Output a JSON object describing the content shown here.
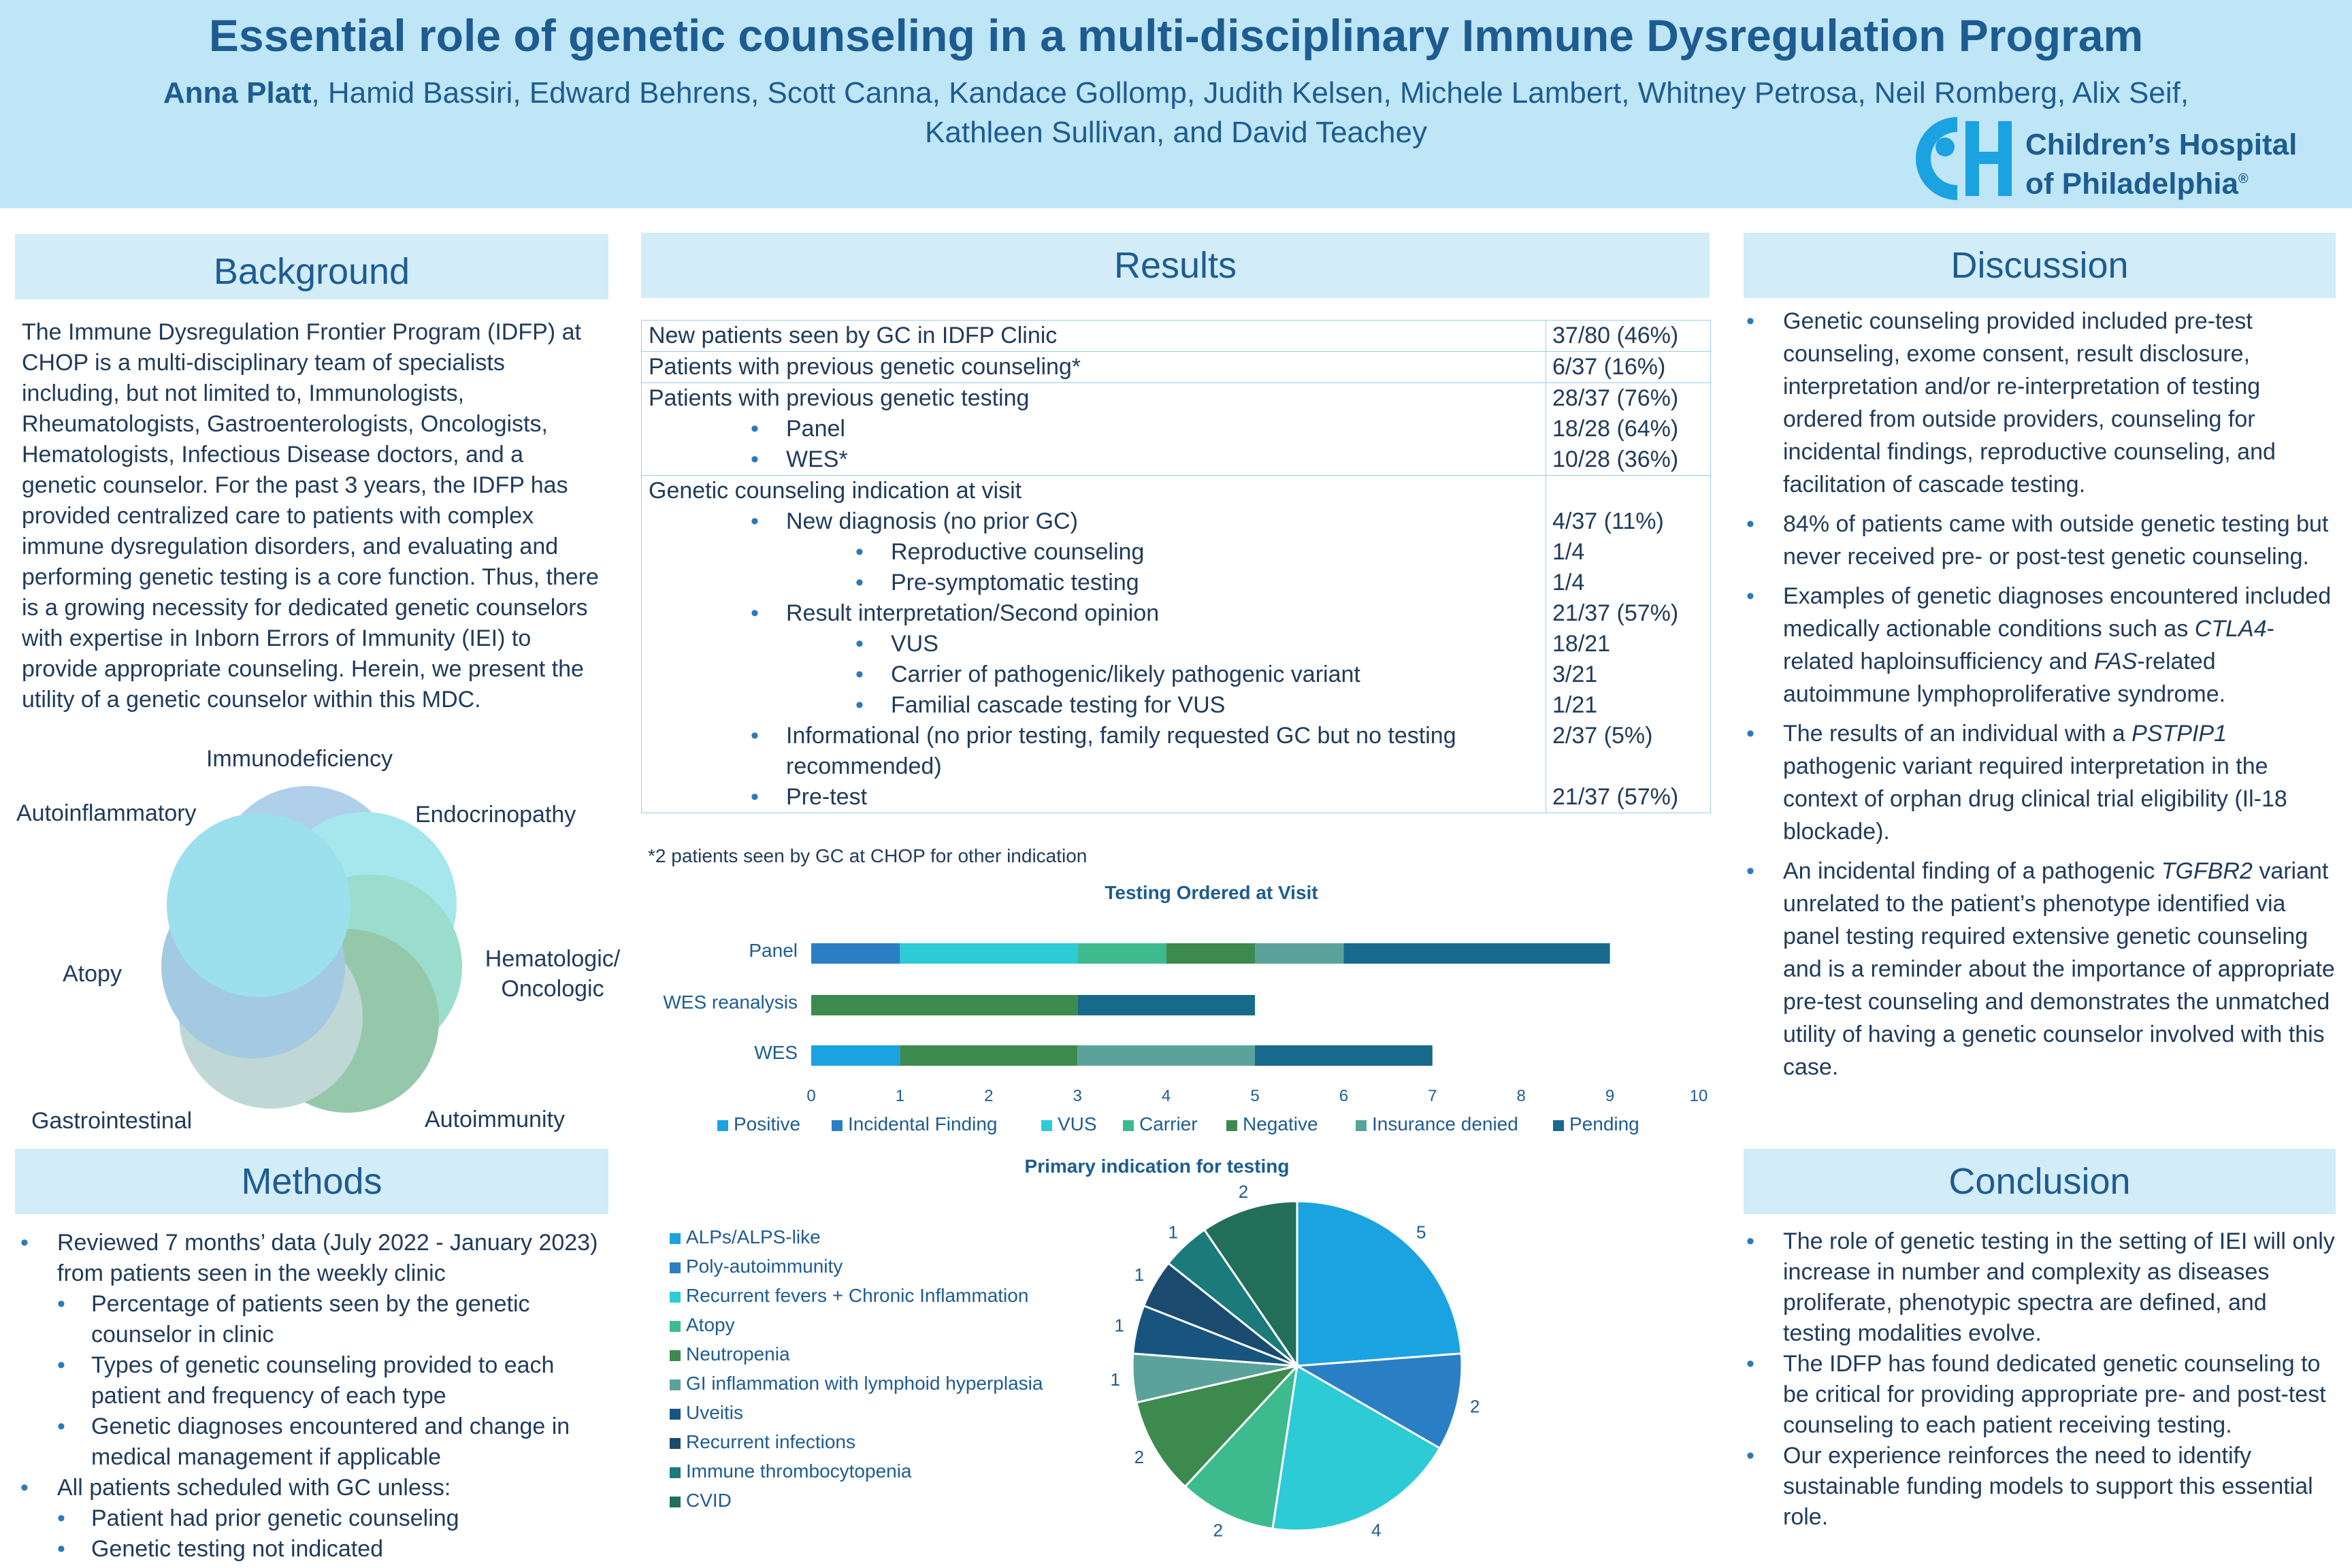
{
  "header": {
    "title": "Essential role of genetic counseling in a multi-disciplinary Immune Dysregulation Program",
    "lead_author": "Anna Platt",
    "authors_rest_line1": ", Hamid Bassiri, Edward Behrens, Scott Canna, Kandace Gollomp, Judith Kelsen, Michele Lambert, Whitney Petrosa, Neil Romberg, Alix Seif,",
    "authors_line2": "Kathleen Sullivan, and David Teachey",
    "logo_line1": "Children’s Hospital",
    "logo_line2": "of Philadelphia",
    "logo_mark": "®"
  },
  "background": {
    "heading": "Background",
    "text": "The Immune Dysregulation Frontier Program (IDFP) at CHOP is a multi-disciplinary team of specialists including, but not limited to, Immunologists, Rheumatologists, Gastroenterologists, Oncologists, Hematologists, Infectious Disease doctors, and a genetic counselor. For the past 3 years, the IDFP has provided centralized care to patients with complex immune dysregulation disorders, and evaluating and performing genetic testing is a core function. Thus, there is a growing necessity for dedicated genetic counselors with expertise in Inborn Errors of Immunity (IEI) to provide appropriate counseling. Herein, we present the utility of a genetic counselor within this MDC."
  },
  "venn": {
    "labels": [
      "Immunodeficiency",
      "Endocrinopathy",
      "Hematologic/",
      "Oncologic",
      "Autoimmunity",
      "Gastrointestinal",
      "Atopy",
      "Autoinflammatory"
    ],
    "colors": [
      "#6fa8dc",
      "#5ed3e0",
      "#48c2a4",
      "#3f9c66",
      "#8bb8b3",
      "#5b9ecc",
      "#4cc7e0"
    ]
  },
  "methods": {
    "heading": "Methods",
    "items": [
      {
        "text": "Reviewed 7 months’ data (July 2022 - January 2023) from patients seen in the weekly clinic",
        "sub": [
          "Percentage of patients seen by the genetic counselor in clinic",
          "Types of genetic counseling provided to each patient and frequency of each type",
          "Genetic diagnoses encountered and change in medical management if applicable"
        ]
      },
      {
        "text": "All patients scheduled with GC unless:",
        "sub": [
          "Patient had prior genetic counseling",
          "Genetic testing not indicated"
        ]
      }
    ]
  },
  "results": {
    "heading": "Results",
    "r1": {
      "label": "New patients seen by GC in IDFP Clinic",
      "value": "37/80 (46%)"
    },
    "r2": {
      "label": "Patients with previous genetic counseling*",
      "value": "6/37 (16%)"
    },
    "r3": {
      "label": "Patients with previous genetic testing",
      "value": "28/37 (76%)",
      "panel": "Panel",
      "panel_v": "18/28 (64%)",
      "wes": "WES*",
      "wes_v": "10/28 (36%)"
    },
    "r4": {
      "label": "Genetic counseling indication at visit",
      "a": "New diagnosis (no prior GC)",
      "a_v": "4/37 (11%)",
      "a1": "Reproductive counseling",
      "a1_v": "1/4",
      "a2": "Pre-symptomatic testing",
      "a2_v": "1/4",
      "b": "Result interpretation/Second opinion",
      "b_v": "21/37 (57%)",
      "b1": "VUS",
      "b1_v": "18/21",
      "b2": "Carrier of pathogenic/likely pathogenic variant",
      "b2_v": "3/21",
      "b3": "Familial cascade testing for VUS",
      "b3_v": "1/21",
      "c": "Informational (no prior testing, family requested GC but no testing",
      "c2": "recommended)",
      "c_v": "2/37 (5%)",
      "d": "Pre-test",
      "d_v": "21/37 (57%)"
    },
    "footnote": "*2 patients seen by GC at CHOP for other indication"
  },
  "chart_data": [
    {
      "type": "bar",
      "orientation": "horizontal-stacked",
      "title": "Testing Ordered at Visit",
      "categories": [
        "Panel",
        "WES reanalysis",
        "WES"
      ],
      "series": [
        {
          "name": "Positive",
          "color": "#1aa3e0",
          "values": [
            0,
            0,
            1
          ]
        },
        {
          "name": "Incidental Finding",
          "color": "#2a7fc4",
          "values": [
            1,
            0,
            0
          ]
        },
        {
          "name": "VUS",
          "color": "#2ccbd6",
          "values": [
            2,
            0,
            0
          ]
        },
        {
          "name": "Carrier",
          "color": "#3dbb8f",
          "values": [
            1,
            0,
            0
          ]
        },
        {
          "name": "Negative",
          "color": "#3d8a4f",
          "values": [
            1,
            3,
            2
          ]
        },
        {
          "name": "Insurance denied",
          "color": "#5ba39a",
          "values": [
            1,
            0,
            2
          ]
        },
        {
          "name": "Pending",
          "color": "#176a8c",
          "values": [
            3,
            2,
            2
          ]
        }
      ],
      "xlim": [
        0,
        10
      ],
      "xticks": [
        0,
        1,
        2,
        3,
        4,
        5,
        6,
        7,
        8,
        9,
        10
      ]
    },
    {
      "type": "pie",
      "title": "Primary indication for testing",
      "labels": [
        "ALPs/ALPS-like",
        "Poly-autoimmunity",
        "Recurrent fevers + Chronic Inflammation",
        "Atopy",
        "Neutropenia",
        "GI inflammation with lymphoid hyperplasia",
        "Uveitis",
        "Recurrent infections",
        "Immune thrombocytopenia",
        "CVID"
      ],
      "values": [
        5,
        2,
        4,
        2,
        2,
        1,
        1,
        1,
        1,
        2
      ],
      "colors": [
        "#1aa3e0",
        "#2a7fc4",
        "#2ccbd6",
        "#3dbb8f",
        "#3d8a4f",
        "#5ba39a",
        "#17557f",
        "#1a4a6e",
        "#1b7a7a",
        "#236e58"
      ]
    }
  ],
  "discussion": {
    "heading": "Discussion",
    "items": [
      {
        "pre": "Genetic counseling provided included pre-test counseling, exome consent, result disclosure, interpretation and/or re-interpretation of testing ordered from outside providers, counseling for incidental findings, reproductive counseling, and facilitation of cascade testing."
      },
      {
        "pre": "84% of patients came with outside genetic testing but never received pre- or post-test genetic counseling."
      },
      {
        "pre": "Examples of genetic diagnoses encountered included medically actionable conditions such as ",
        "em1": "CTLA4",
        "mid": "- related haploinsufficiency and ",
        "em2": "FAS",
        "post": "-related autoimmune lymphoproliferative syndrome."
      },
      {
        "pre": "The results of an individual with a ",
        "em1": "PSTPIP1",
        "post": " pathogenic variant required interpretation in the context of orphan drug clinical trial eligibility (Il-18 blockade)."
      },
      {
        "pre": "An incidental finding of a pathogenic ",
        "em1": "TGFBR2",
        "post": " variant unrelated to the patient’s phenotype identified via panel testing required extensive genetic counseling and is a reminder about the importance of appropriate pre-test counseling and demonstrates the unmatched utility of having a genetic counselor involved with this case."
      }
    ]
  },
  "conclusion": {
    "heading": "Conclusion",
    "items": [
      "The role of genetic testing in the setting of IEI will only increase in number and complexity as diseases proliferate, phenotypic spectra are defined, and testing modalities evolve.",
      "The IDFP has found dedicated genetic counseling to be critical for providing appropriate pre- and post-test counseling to each patient receiving testing.",
      "Our experience reinforces the need to identify sustainable funding models to support this essential role."
    ]
  }
}
